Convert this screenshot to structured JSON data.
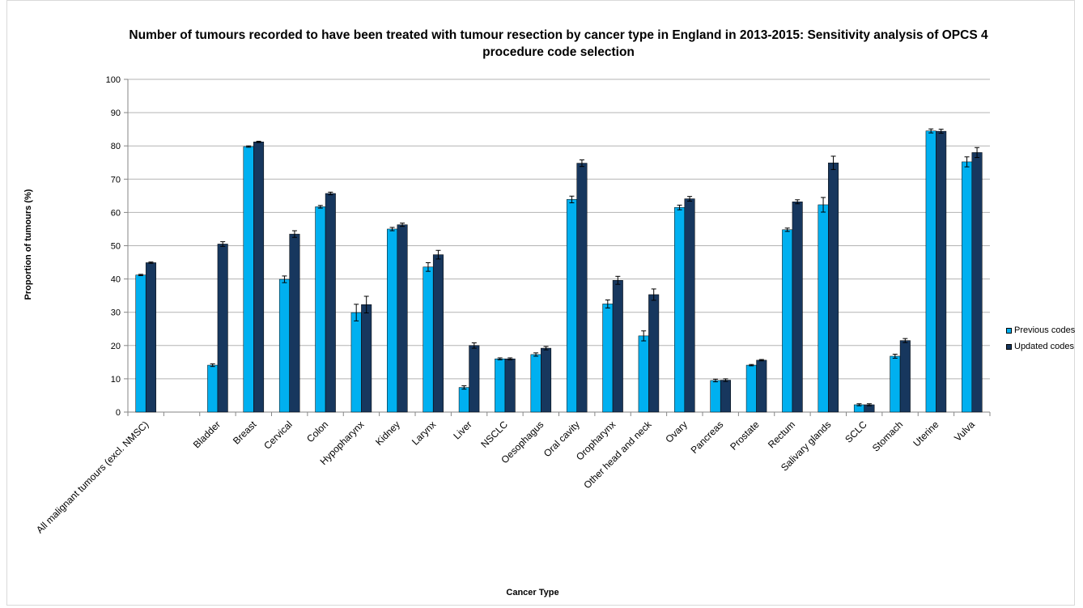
{
  "chart_data": {
    "type": "bar",
    "title": "Number of tumours recorded to have been treated with tumour resection by cancer type in England in 2013-2015: Sensitivity analysis of OPCS 4 procedure code selection",
    "xlabel": "Cancer Type",
    "ylabel": "Proportion of tumours (%)",
    "ylim": [
      0,
      100
    ],
    "yticks": [
      0,
      10,
      20,
      30,
      40,
      50,
      60,
      70,
      80,
      90,
      100
    ],
    "grid": true,
    "legend_position": "right",
    "categories": [
      "All malignant tumours (excl. NMSC)",
      "",
      "Bladder",
      "Breast",
      "Cervical",
      "Colon",
      "Hypopharynx",
      "Kidney",
      "Larynx",
      "Liver",
      "NSCLC",
      "Oesophagus",
      "Oral cavity",
      "Oropharynx",
      "Other head and neck",
      "Ovary",
      "Pancreas",
      "Prostate",
      "Rectum",
      "Salivary glands",
      "SCLC",
      "Stomach",
      "Uterine",
      "Vulva"
    ],
    "series": [
      {
        "name": "Previous codes",
        "color": "#00b0f0",
        "values": [
          41.2,
          null,
          14.1,
          79.8,
          39.9,
          61.7,
          29.9,
          55.0,
          43.6,
          7.4,
          16.0,
          17.3,
          63.9,
          32.5,
          22.9,
          61.5,
          9.5,
          14.1,
          54.8,
          62.3,
          2.2,
          16.8,
          84.5,
          75.2
        ],
        "errors": [
          0.2,
          null,
          0.4,
          0.2,
          1.0,
          0.4,
          2.5,
          0.5,
          1.3,
          0.5,
          0.3,
          0.5,
          1.0,
          1.2,
          1.5,
          0.7,
          0.4,
          0.2,
          0.5,
          2.2,
          0.3,
          0.6,
          0.6,
          1.5
        ]
      },
      {
        "name": "Updated codes",
        "color": "#17375e",
        "values": [
          44.9,
          null,
          50.5,
          81.2,
          53.5,
          65.7,
          32.3,
          56.3,
          47.3,
          20.0,
          16.0,
          19.2,
          74.8,
          39.6,
          35.3,
          64.1,
          9.6,
          15.6,
          63.2,
          74.9,
          2.2,
          21.5,
          84.4,
          78.0
        ],
        "errors": [
          0.2,
          null,
          0.7,
          0.2,
          1.0,
          0.4,
          2.5,
          0.5,
          1.3,
          0.8,
          0.3,
          0.5,
          1.0,
          1.2,
          1.7,
          0.7,
          0.4,
          0.2,
          0.6,
          2.0,
          0.3,
          0.6,
          0.6,
          1.5
        ]
      }
    ]
  }
}
